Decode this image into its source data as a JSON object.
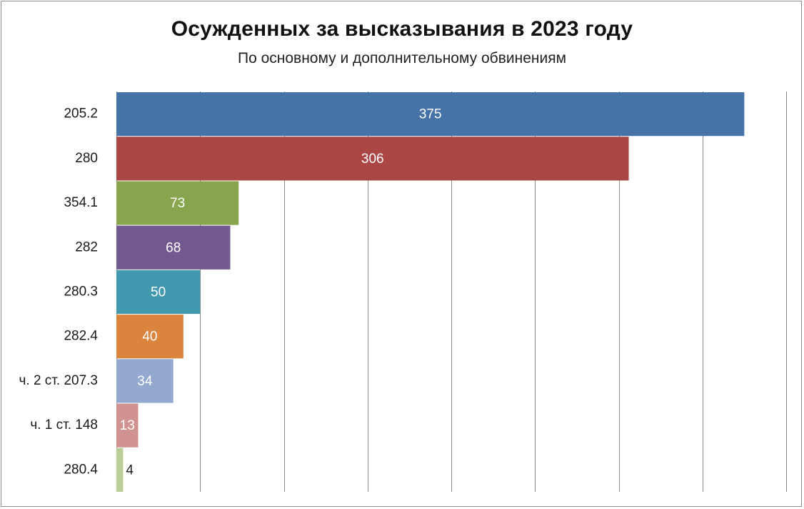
{
  "chart_data": {
    "type": "bar",
    "orientation": "horizontal",
    "title": "Осужденных за высказывания в 2023 году",
    "subtitle": "По основному и дополнительному обвинениям",
    "categories": [
      "205.2",
      "280",
      "354.1",
      "282",
      "280.3",
      "282.4",
      "ч. 2 ст. 207.3",
      "ч. 1 ст. 148",
      "280.4"
    ],
    "values": [
      375,
      306,
      73,
      68,
      50,
      40,
      34,
      13,
      4
    ],
    "colors": [
      "#4572a7",
      "#aa4643",
      "#89a54e",
      "#71588f",
      "#4198af",
      "#db843d",
      "#93a9cf",
      "#d19392",
      "#b9cd96"
    ],
    "xlim": [
      0,
      400
    ],
    "x_gridline_step": 50,
    "grid": "vertical",
    "legend": "none",
    "data_labels": true
  }
}
